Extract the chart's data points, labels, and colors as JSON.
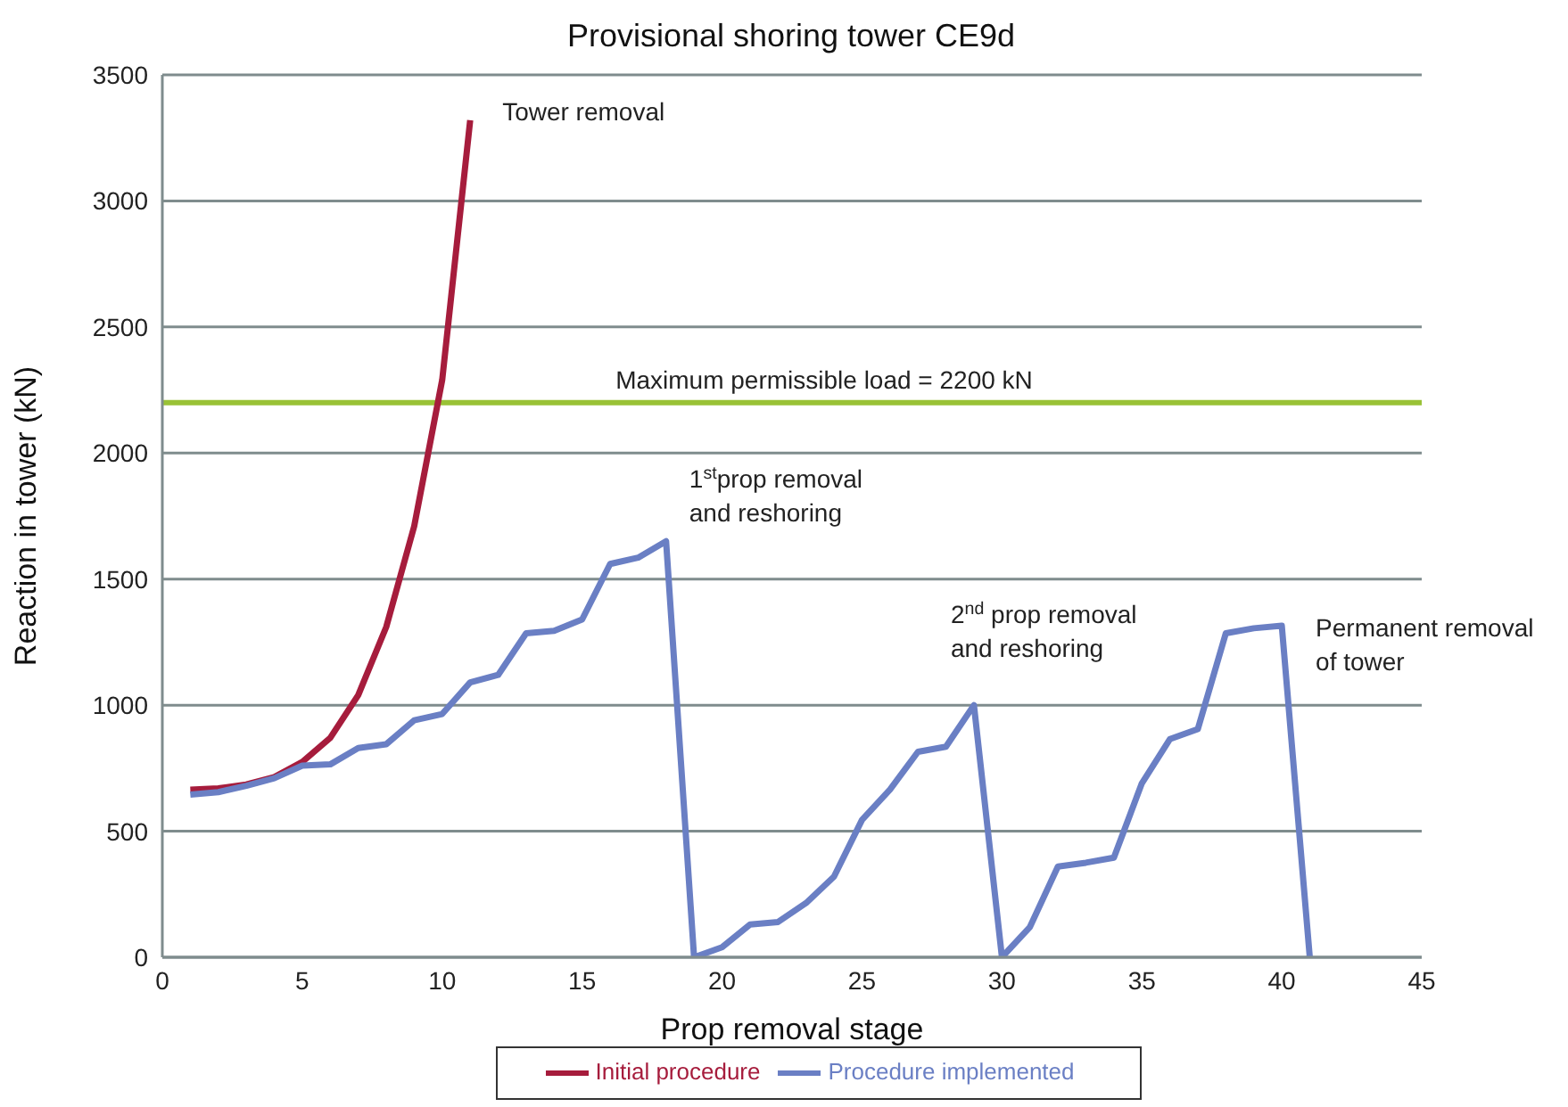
{
  "chart_data": {
    "type": "line",
    "title": "Provisional shoring tower CE9d",
    "xlabel": "Prop removal stage",
    "ylabel": "Reaction in tower (kN)",
    "xlim": [
      0,
      45
    ],
    "xticks": [
      0,
      5,
      10,
      15,
      20,
      25,
      30,
      35,
      40,
      45
    ],
    "ylim": [
      0,
      3500
    ],
    "yticks": [
      0,
      500,
      1000,
      1500,
      2000,
      2500,
      3000,
      3500
    ],
    "grid": "y",
    "legend": "bottom",
    "marker": "none",
    "line_style": "solid",
    "series": [
      {
        "name": "Initial procedure",
        "color": "#a61c3c",
        "x": [
          1,
          2,
          3,
          4,
          5,
          6,
          7,
          8,
          9,
          10,
          11
        ],
        "values": [
          665,
          670,
          685,
          715,
          775,
          870,
          1040,
          1310,
          1710,
          2290,
          3320
        ]
      },
      {
        "name": "Procedure implemented",
        "color": "#6a7fc4",
        "x": [
          1,
          2,
          3,
          4,
          5,
          6,
          7,
          8,
          9,
          10,
          11,
          12,
          13,
          14,
          15,
          16,
          17,
          18,
          19,
          20,
          21,
          22,
          23,
          24,
          25,
          26,
          27,
          28,
          29,
          30,
          31,
          32,
          33,
          34,
          35,
          36,
          37,
          38,
          39,
          40,
          41
        ],
        "values": [
          645,
          655,
          680,
          710,
          760,
          765,
          830,
          845,
          940,
          965,
          1090,
          1120,
          1285,
          1295,
          1340,
          1560,
          1585,
          1650,
          0,
          40,
          130,
          140,
          215,
          320,
          545,
          665,
          815,
          835,
          1000,
          0,
          120,
          360,
          375,
          395,
          690,
          865,
          905,
          1285,
          1305,
          1315,
          0
        ]
      }
    ],
    "ref_lines": [
      {
        "axis": "y",
        "value": 2200,
        "label": "Maximum permissible load = 2200 kN",
        "color": "#99c236"
      }
    ],
    "annotations": [
      {
        "text": "Tower removal",
        "x": 11,
        "y": 3320
      },
      {
        "text": "1$^{st}$prop removal\nand reshoring",
        "x": 18,
        "y": 1650
      },
      {
        "text": "2$^{nd}$ prop removal\nand reshoring",
        "x": 29,
        "y": 1000
      },
      {
        "text": "Permanent removal\nof tower",
        "x": 40,
        "y": 1315
      }
    ]
  }
}
